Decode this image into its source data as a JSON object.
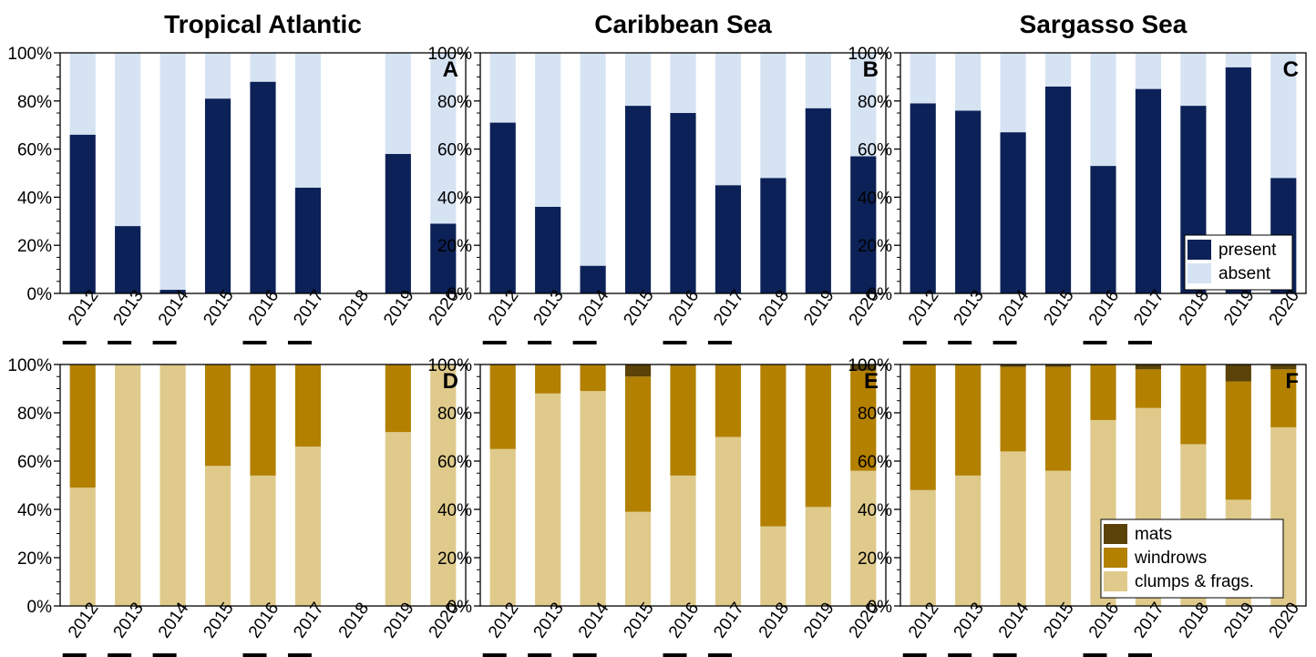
{
  "columns": [
    "Tropical Atlantic",
    "Caribbean Sea",
    "Sargasso Sea"
  ],
  "colors": {
    "present": "#0c2157",
    "absent": "#d6e3f3",
    "mats": "#5a4208",
    "windrows": "#b38000",
    "clumps": "#dfca8b",
    "axis": "#000000"
  },
  "legend_top": [
    {
      "key": "present",
      "label": "present"
    },
    {
      "key": "absent",
      "label": "absent"
    }
  ],
  "legend_bottom": [
    {
      "key": "mats",
      "label": "mats"
    },
    {
      "key": "windrows",
      "label": "windrows"
    },
    {
      "key": "clumps",
      "label": "clumps & frags."
    }
  ],
  "highlighted_years": [
    "2012",
    "2013",
    "2014",
    "2016",
    "2017"
  ],
  "chart_data": [
    {
      "panel": "A",
      "column": "Tropical Atlantic",
      "type": "bar",
      "stacked": true,
      "categories": [
        "2012",
        "2013",
        "2014",
        "2015",
        "2016",
        "2017",
        "2018",
        "2019",
        "2020"
      ],
      "ylim": [
        0,
        100
      ],
      "yticks": [
        "0%",
        "20%",
        "40%",
        "60%",
        "80%",
        "100%"
      ],
      "series": [
        {
          "name": "present",
          "values": [
            66,
            28,
            1.5,
            81,
            88,
            44,
            null,
            58,
            29
          ]
        },
        {
          "name": "absent",
          "values": [
            34,
            72,
            98.5,
            19,
            12,
            56,
            null,
            42,
            71
          ]
        }
      ]
    },
    {
      "panel": "B",
      "column": "Caribbean Sea",
      "type": "bar",
      "stacked": true,
      "categories": [
        "2012",
        "2013",
        "2014",
        "2015",
        "2016",
        "2017",
        "2018",
        "2019",
        "2020"
      ],
      "ylim": [
        0,
        100
      ],
      "yticks": [
        "0%",
        "20%",
        "40%",
        "60%",
        "80%",
        "100%"
      ],
      "series": [
        {
          "name": "present",
          "values": [
            71,
            36,
            11.5,
            78,
            75,
            45,
            48,
            77,
            57
          ]
        },
        {
          "name": "absent",
          "values": [
            29,
            64,
            88.5,
            22,
            25,
            55,
            52,
            23,
            43
          ]
        }
      ]
    },
    {
      "panel": "C",
      "column": "Sargasso Sea",
      "type": "bar",
      "stacked": true,
      "categories": [
        "2012",
        "2013",
        "2014",
        "2015",
        "2016",
        "2017",
        "2018",
        "2019",
        "2020"
      ],
      "ylim": [
        0,
        100
      ],
      "yticks": [
        "0%",
        "20%",
        "40%",
        "60%",
        "80%",
        "100%"
      ],
      "series": [
        {
          "name": "present",
          "values": [
            79,
            76,
            67,
            86,
            53,
            85,
            78,
            94,
            48
          ]
        },
        {
          "name": "absent",
          "values": [
            21,
            24,
            33,
            14,
            47,
            15,
            22,
            6,
            52
          ]
        }
      ]
    },
    {
      "panel": "D",
      "column": "Tropical Atlantic",
      "type": "bar",
      "stacked": true,
      "categories": [
        "2012",
        "2013",
        "2014",
        "2015",
        "2016",
        "2017",
        "2018",
        "2019",
        "2020"
      ],
      "ylim": [
        0,
        100
      ],
      "yticks": [
        "0%",
        "20%",
        "40%",
        "60%",
        "80%",
        "100%"
      ],
      "series": [
        {
          "name": "clumps & frags.",
          "values": [
            49,
            100,
            100,
            58,
            54,
            66,
            null,
            72,
            100
          ]
        },
        {
          "name": "windrows",
          "values": [
            51,
            0,
            0,
            42,
            46,
            34,
            null,
            28,
            0
          ]
        },
        {
          "name": "mats",
          "values": [
            0,
            0,
            0,
            0,
            0,
            0,
            null,
            0,
            0
          ]
        }
      ]
    },
    {
      "panel": "E",
      "column": "Caribbean Sea",
      "type": "bar",
      "stacked": true,
      "categories": [
        "2012",
        "2013",
        "2014",
        "2015",
        "2016",
        "2017",
        "2018",
        "2019",
        "2020"
      ],
      "ylim": [
        0,
        100
      ],
      "yticks": [
        "0%",
        "20%",
        "40%",
        "60%",
        "80%",
        "100%"
      ],
      "series": [
        {
          "name": "clumps & frags.",
          "values": [
            65,
            88,
            89,
            39,
            54,
            70,
            33,
            41,
            56
          ]
        },
        {
          "name": "windrows",
          "values": [
            35,
            12,
            11,
            56,
            45.5,
            30,
            67,
            59,
            41.5
          ]
        },
        {
          "name": "mats",
          "values": [
            0,
            0,
            0,
            5,
            0.5,
            0,
            0,
            0,
            2.5
          ]
        }
      ]
    },
    {
      "panel": "F",
      "column": "Sargasso Sea",
      "type": "bar",
      "stacked": true,
      "categories": [
        "2012",
        "2013",
        "2014",
        "2015",
        "2016",
        "2017",
        "2018",
        "2019",
        "2020"
      ],
      "ylim": [
        0,
        100
      ],
      "yticks": [
        "0%",
        "20%",
        "40%",
        "60%",
        "80%",
        "100%"
      ],
      "series": [
        {
          "name": "clumps & frags.",
          "values": [
            48,
            54,
            64,
            56,
            77,
            82,
            67,
            44,
            74
          ]
        },
        {
          "name": "windrows",
          "values": [
            52,
            46,
            35,
            43,
            23,
            16,
            33,
            49,
            24
          ]
        },
        {
          "name": "mats",
          "values": [
            0,
            0,
            1,
            1,
            0,
            2,
            0,
            7,
            2
          ]
        }
      ]
    }
  ]
}
